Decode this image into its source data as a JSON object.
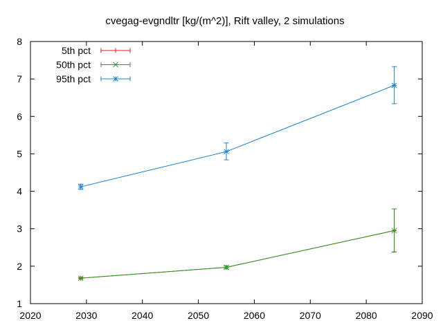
{
  "chart_data": {
    "type": "line",
    "title": "cvegag-evgndltr [kg/(m^2)], Rift valley, 2 simulations",
    "xlabel": "",
    "ylabel": "",
    "xlim": [
      2020,
      2090
    ],
    "ylim": [
      1,
      8
    ],
    "xticks": [
      2020,
      2030,
      2040,
      2050,
      2060,
      2070,
      2080,
      2090
    ],
    "yticks": [
      1,
      2,
      3,
      4,
      5,
      6,
      7,
      8
    ],
    "xtick_labels": [
      "2020",
      "2030",
      "2040",
      "2050",
      "2060",
      "2070",
      "2080",
      "2090"
    ],
    "ytick_labels": [
      "1",
      "2",
      "3",
      "4",
      "5",
      "6",
      "7",
      "8"
    ],
    "grid": false,
    "legend_position": "top-left",
    "series": [
      {
        "name": "5th pct",
        "color": "#e41a1c",
        "marker": "plus",
        "x": [
          2029,
          2055,
          2085
        ],
        "y": [
          1.68,
          1.97,
          2.95
        ],
        "err_low": [
          1.68,
          1.97,
          2.38
        ],
        "err_high": [
          1.68,
          1.97,
          3.53
        ]
      },
      {
        "name": "50th pct",
        "color": "#1fa01f",
        "marker": "cross",
        "x": [
          2029,
          2055,
          2085
        ],
        "y": [
          1.68,
          1.97,
          2.95
        ],
        "err_low": [
          1.66,
          1.93,
          2.38
        ],
        "err_high": [
          1.7,
          2.01,
          3.53
        ]
      },
      {
        "name": "95th pct",
        "color": "#1a7fd6",
        "marker": "star",
        "x": [
          2029,
          2055,
          2085
        ],
        "y": [
          4.12,
          5.06,
          6.83
        ],
        "err_low": [
          4.05,
          4.84,
          6.34
        ],
        "err_high": [
          4.19,
          5.29,
          7.33
        ]
      }
    ]
  }
}
